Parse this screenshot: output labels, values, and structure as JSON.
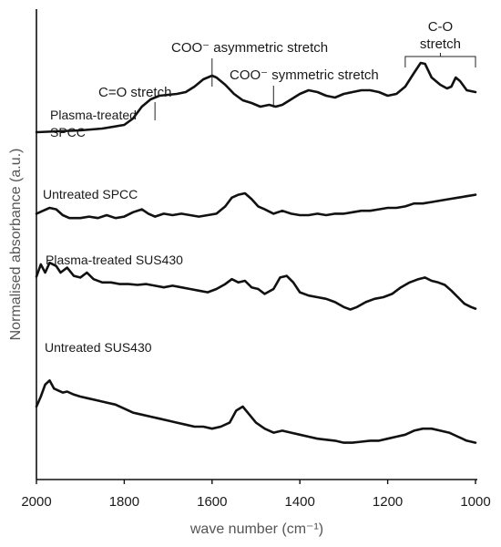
{
  "chart_data": {
    "type": "line",
    "xlabel": "wave number (cm⁻¹)",
    "ylabel": "Normalised absorbance (a.u.)",
    "xlim": [
      2000,
      1000
    ],
    "x_reversed": true,
    "x_ticks": [
      "2000",
      "1800",
      "1600",
      "1400",
      "1200",
      "1000"
    ],
    "y_unit": "a.u. (stacked, offset)",
    "grid": false,
    "series": [
      {
        "name": "Plasma-treated SPCC",
        "points": [
          [
            2000,
            0.2
          ],
          [
            1950,
            0.21
          ],
          [
            1900,
            0.22
          ],
          [
            1850,
            0.24
          ],
          [
            1800,
            0.28
          ],
          [
            1780,
            0.35
          ],
          [
            1760,
            0.48
          ],
          [
            1740,
            0.56
          ],
          [
            1720,
            0.6
          ],
          [
            1700,
            0.61
          ],
          [
            1680,
            0.62
          ],
          [
            1660,
            0.64
          ],
          [
            1640,
            0.7
          ],
          [
            1620,
            0.78
          ],
          [
            1600,
            0.82
          ],
          [
            1590,
            0.8
          ],
          [
            1570,
            0.72
          ],
          [
            1550,
            0.62
          ],
          [
            1530,
            0.55
          ],
          [
            1510,
            0.52
          ],
          [
            1490,
            0.48
          ],
          [
            1470,
            0.5
          ],
          [
            1455,
            0.48
          ],
          [
            1440,
            0.5
          ],
          [
            1420,
            0.56
          ],
          [
            1400,
            0.62
          ],
          [
            1380,
            0.66
          ],
          [
            1360,
            0.64
          ],
          [
            1340,
            0.6
          ],
          [
            1320,
            0.58
          ],
          [
            1300,
            0.62
          ],
          [
            1280,
            0.64
          ],
          [
            1260,
            0.66
          ],
          [
            1240,
            0.66
          ],
          [
            1220,
            0.64
          ],
          [
            1200,
            0.6
          ],
          [
            1180,
            0.62
          ],
          [
            1160,
            0.7
          ],
          [
            1140,
            0.85
          ],
          [
            1125,
            0.96
          ],
          [
            1115,
            0.95
          ],
          [
            1100,
            0.8
          ],
          [
            1080,
            0.72
          ],
          [
            1065,
            0.68
          ],
          [
            1055,
            0.7
          ],
          [
            1045,
            0.8
          ],
          [
            1035,
            0.76
          ],
          [
            1020,
            0.66
          ],
          [
            1000,
            0.64
          ]
        ]
      },
      {
        "name": "Untreated SPCC",
        "points": [
          [
            2000,
            0.12
          ],
          [
            1985,
            0.16
          ],
          [
            1970,
            0.2
          ],
          [
            1955,
            0.18
          ],
          [
            1940,
            0.1
          ],
          [
            1925,
            0.06
          ],
          [
            1900,
            0.06
          ],
          [
            1880,
            0.08
          ],
          [
            1860,
            0.06
          ],
          [
            1840,
            0.1
          ],
          [
            1820,
            0.06
          ],
          [
            1800,
            0.08
          ],
          [
            1780,
            0.14
          ],
          [
            1760,
            0.18
          ],
          [
            1745,
            0.12
          ],
          [
            1730,
            0.08
          ],
          [
            1710,
            0.12
          ],
          [
            1690,
            0.1
          ],
          [
            1670,
            0.12
          ],
          [
            1650,
            0.1
          ],
          [
            1630,
            0.08
          ],
          [
            1610,
            0.1
          ],
          [
            1590,
            0.12
          ],
          [
            1570,
            0.22
          ],
          [
            1555,
            0.34
          ],
          [
            1540,
            0.38
          ],
          [
            1525,
            0.4
          ],
          [
            1510,
            0.32
          ],
          [
            1495,
            0.22
          ],
          [
            1480,
            0.18
          ],
          [
            1460,
            0.12
          ],
          [
            1440,
            0.16
          ],
          [
            1420,
            0.12
          ],
          [
            1400,
            0.1
          ],
          [
            1380,
            0.1
          ],
          [
            1360,
            0.12
          ],
          [
            1340,
            0.1
          ],
          [
            1320,
            0.12
          ],
          [
            1300,
            0.12
          ],
          [
            1280,
            0.14
          ],
          [
            1260,
            0.16
          ],
          [
            1240,
            0.16
          ],
          [
            1220,
            0.18
          ],
          [
            1200,
            0.2
          ],
          [
            1180,
            0.2
          ],
          [
            1160,
            0.22
          ],
          [
            1140,
            0.26
          ],
          [
            1120,
            0.26
          ],
          [
            1100,
            0.28
          ],
          [
            1080,
            0.3
          ],
          [
            1060,
            0.32
          ],
          [
            1040,
            0.34
          ],
          [
            1020,
            0.36
          ],
          [
            1000,
            0.38
          ]
        ]
      },
      {
        "name": "Plasma-treated SUS430",
        "points": [
          [
            2000,
            0.65
          ],
          [
            1990,
            0.8
          ],
          [
            1980,
            0.7
          ],
          [
            1970,
            0.82
          ],
          [
            1955,
            0.78
          ],
          [
            1945,
            0.7
          ],
          [
            1930,
            0.76
          ],
          [
            1915,
            0.66
          ],
          [
            1900,
            0.64
          ],
          [
            1885,
            0.7
          ],
          [
            1870,
            0.62
          ],
          [
            1850,
            0.58
          ],
          [
            1830,
            0.58
          ],
          [
            1810,
            0.56
          ],
          [
            1790,
            0.56
          ],
          [
            1770,
            0.55
          ],
          [
            1750,
            0.56
          ],
          [
            1730,
            0.54
          ],
          [
            1710,
            0.52
          ],
          [
            1690,
            0.54
          ],
          [
            1670,
            0.52
          ],
          [
            1650,
            0.5
          ],
          [
            1630,
            0.48
          ],
          [
            1610,
            0.46
          ],
          [
            1590,
            0.5
          ],
          [
            1570,
            0.56
          ],
          [
            1555,
            0.62
          ],
          [
            1540,
            0.58
          ],
          [
            1525,
            0.6
          ],
          [
            1510,
            0.52
          ],
          [
            1495,
            0.5
          ],
          [
            1480,
            0.44
          ],
          [
            1460,
            0.5
          ],
          [
            1445,
            0.64
          ],
          [
            1430,
            0.66
          ],
          [
            1415,
            0.58
          ],
          [
            1400,
            0.46
          ],
          [
            1380,
            0.42
          ],
          [
            1360,
            0.4
          ],
          [
            1340,
            0.38
          ],
          [
            1320,
            0.34
          ],
          [
            1300,
            0.28
          ],
          [
            1285,
            0.25
          ],
          [
            1270,
            0.28
          ],
          [
            1250,
            0.34
          ],
          [
            1230,
            0.38
          ],
          [
            1210,
            0.4
          ],
          [
            1190,
            0.44
          ],
          [
            1170,
            0.52
          ],
          [
            1150,
            0.58
          ],
          [
            1130,
            0.62
          ],
          [
            1115,
            0.64
          ],
          [
            1100,
            0.6
          ],
          [
            1085,
            0.58
          ],
          [
            1070,
            0.55
          ],
          [
            1055,
            0.48
          ],
          [
            1040,
            0.4
          ],
          [
            1025,
            0.32
          ],
          [
            1010,
            0.28
          ],
          [
            1000,
            0.26
          ]
        ]
      },
      {
        "name": "Untreated SUS430",
        "points": [
          [
            2000,
            0.4
          ],
          [
            1990,
            0.5
          ],
          [
            1980,
            0.62
          ],
          [
            1970,
            0.66
          ],
          [
            1960,
            0.58
          ],
          [
            1950,
            0.56
          ],
          [
            1940,
            0.54
          ],
          [
            1930,
            0.55
          ],
          [
            1915,
            0.52
          ],
          [
            1900,
            0.5
          ],
          [
            1880,
            0.48
          ],
          [
            1860,
            0.46
          ],
          [
            1840,
            0.44
          ],
          [
            1820,
            0.42
          ],
          [
            1800,
            0.38
          ],
          [
            1780,
            0.34
          ],
          [
            1760,
            0.32
          ],
          [
            1740,
            0.3
          ],
          [
            1720,
            0.28
          ],
          [
            1700,
            0.26
          ],
          [
            1680,
            0.24
          ],
          [
            1660,
            0.22
          ],
          [
            1640,
            0.2
          ],
          [
            1620,
            0.2
          ],
          [
            1600,
            0.18
          ],
          [
            1580,
            0.2
          ],
          [
            1560,
            0.24
          ],
          [
            1545,
            0.36
          ],
          [
            1530,
            0.4
          ],
          [
            1515,
            0.32
          ],
          [
            1500,
            0.24
          ],
          [
            1480,
            0.18
          ],
          [
            1460,
            0.14
          ],
          [
            1440,
            0.16
          ],
          [
            1420,
            0.14
          ],
          [
            1400,
            0.12
          ],
          [
            1380,
            0.1
          ],
          [
            1360,
            0.08
          ],
          [
            1340,
            0.07
          ],
          [
            1320,
            0.06
          ],
          [
            1300,
            0.04
          ],
          [
            1280,
            0.04
          ],
          [
            1260,
            0.05
          ],
          [
            1240,
            0.06
          ],
          [
            1220,
            0.06
          ],
          [
            1200,
            0.08
          ],
          [
            1180,
            0.1
          ],
          [
            1160,
            0.12
          ],
          [
            1140,
            0.16
          ],
          [
            1120,
            0.18
          ],
          [
            1100,
            0.18
          ],
          [
            1080,
            0.16
          ],
          [
            1060,
            0.14
          ],
          [
            1040,
            0.1
          ],
          [
            1020,
            0.06
          ],
          [
            1000,
            0.04
          ]
        ]
      }
    ],
    "series_labels": [
      "Plasma-treated\nSPCC",
      "Untreated SPCC",
      "Plasma-treated SUS430",
      "Untreated SUS430"
    ],
    "annotations": [
      {
        "text": "C=O stretch",
        "x": 1730
      },
      {
        "text": "COO⁻ asymmetric stretch",
        "x": 1600
      },
      {
        "text": "COO⁻ symmetric stretch",
        "x": 1460
      },
      {
        "text": "C-O\nstretch",
        "x_range": [
          1160,
          1000
        ]
      }
    ]
  }
}
